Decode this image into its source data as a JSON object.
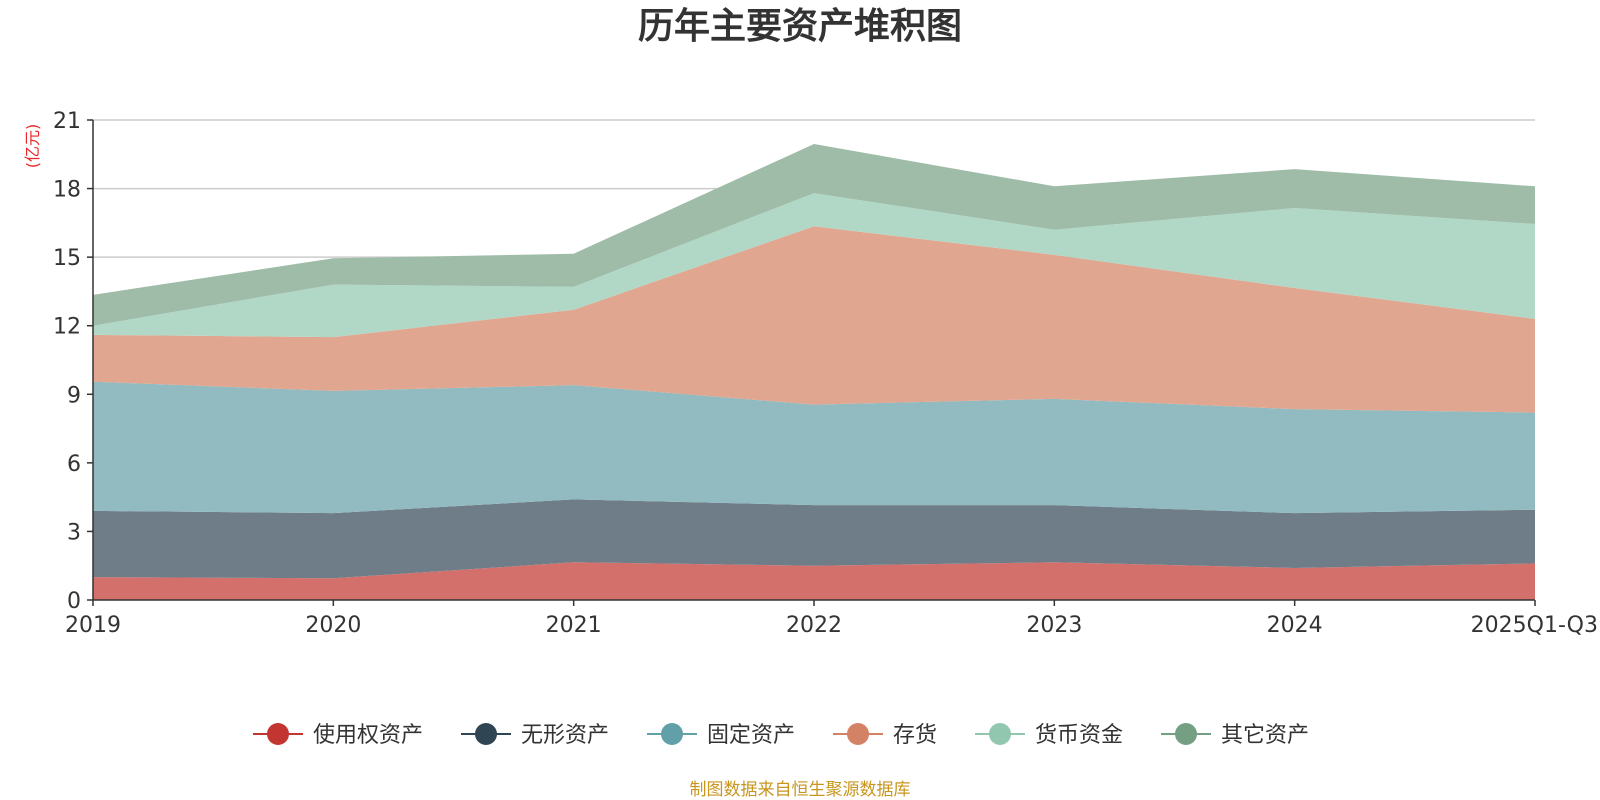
{
  "chart_data": {
    "type": "area",
    "stacked": true,
    "title": "历年主要资产堆积图",
    "ylabel": "(亿元)",
    "xlabel": "",
    "categories": [
      "2019",
      "2020",
      "2021",
      "2022",
      "2023",
      "2024",
      "2025Q1-Q3"
    ],
    "ylim": [
      0,
      21
    ],
    "yticks": [
      0,
      3,
      6,
      9,
      12,
      15,
      18,
      21
    ],
    "grid": true,
    "legend_position": "bottom-center",
    "series": [
      {
        "name": "使用权资产",
        "color": "#c23531",
        "fill": "#d4706c",
        "values": [
          1.0,
          0.95,
          1.65,
          1.5,
          1.65,
          1.4,
          1.6
        ]
      },
      {
        "name": "无形资产",
        "color": "#2f4554",
        "fill": "#6e7d88",
        "values": [
          2.9,
          2.85,
          2.75,
          2.65,
          2.5,
          2.4,
          2.35
        ]
      },
      {
        "name": "固定资产",
        "color": "#61a0a8",
        "fill": "#91bbc1",
        "values": [
          5.65,
          5.35,
          5.0,
          4.4,
          4.65,
          4.55,
          4.25
        ]
      },
      {
        "name": "存货",
        "color": "#d48265",
        "fill": "#e1a690",
        "values": [
          2.05,
          2.35,
          3.3,
          7.8,
          6.3,
          5.3,
          4.1
        ]
      },
      {
        "name": "货币资金",
        "color": "#91c7ae",
        "fill": "#b1d8c6",
        "values": [
          0.4,
          2.3,
          1.0,
          1.45,
          1.1,
          3.5,
          4.15
        ]
      },
      {
        "name": "其它资产",
        "color": "#749f83",
        "fill": "#9ebca8",
        "values": [
          1.35,
          1.15,
          1.45,
          2.15,
          1.9,
          1.7,
          1.65
        ]
      }
    ],
    "source": "制图数据来自恒生聚源数据库"
  }
}
